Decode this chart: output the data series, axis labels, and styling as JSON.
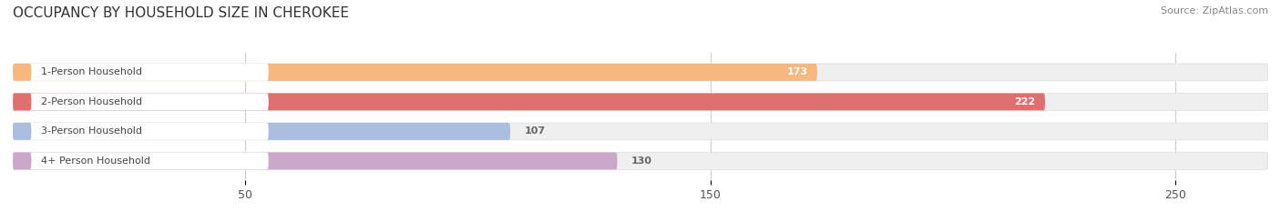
{
  "title": "OCCUPANCY BY HOUSEHOLD SIZE IN CHEROKEE",
  "source": "Source: ZipAtlas.com",
  "categories": [
    "1-Person Household",
    "2-Person Household",
    "3-Person Household",
    "4+ Person Household"
  ],
  "values": [
    173,
    222,
    107,
    130
  ],
  "bar_colors": [
    "#F5B97F",
    "#E07070",
    "#AABFE0",
    "#C9A8C9"
  ],
  "bg_bar_color": "#EFEFEF",
  "value_colors": [
    "#FFFFFF",
    "#FFFFFF",
    "#666666",
    "#666666"
  ],
  "xlim": [
    0,
    270
  ],
  "xticks": [
    50,
    150,
    250
  ],
  "bar_height": 0.58,
  "figsize": [
    14.06,
    2.33
  ],
  "dpi": 100,
  "title_fontsize": 11,
  "label_fontsize": 8,
  "value_fontsize": 8,
  "tick_fontsize": 9,
  "source_fontsize": 8
}
